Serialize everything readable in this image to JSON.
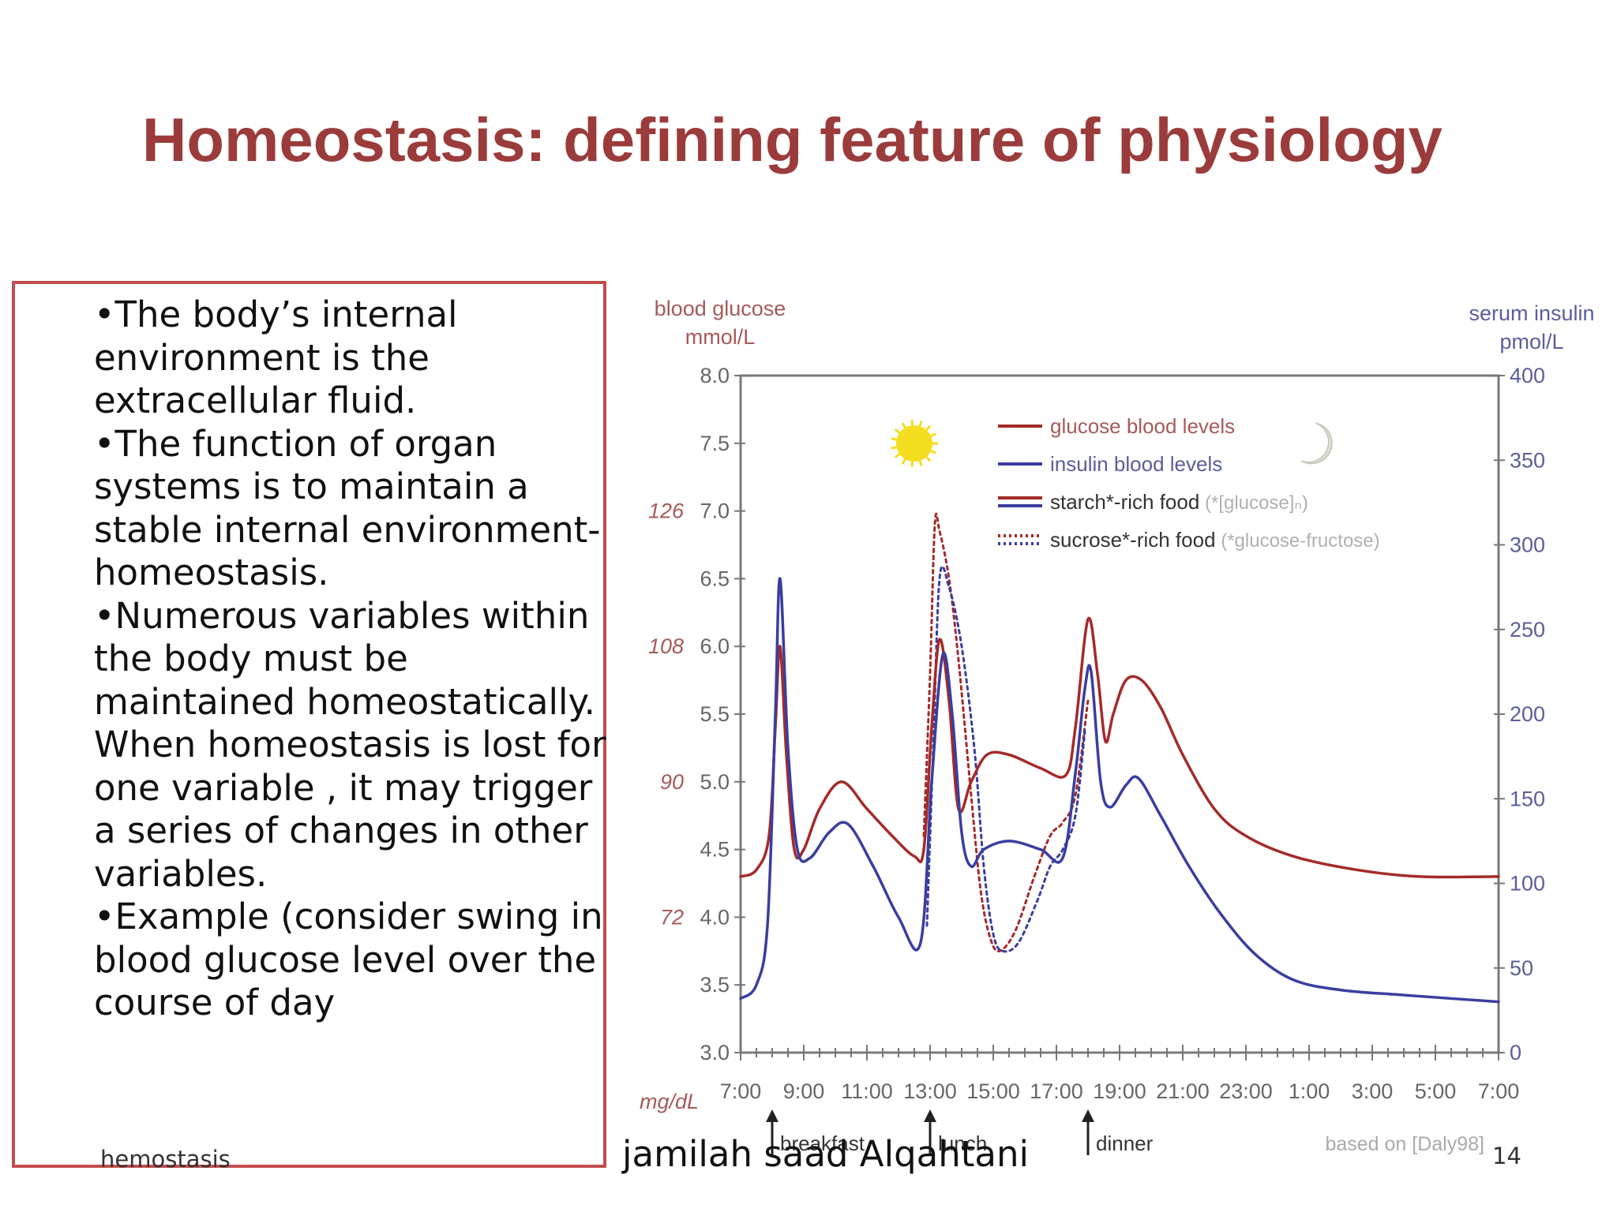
{
  "slide": {
    "title": "Homeostasis: defining feature of physiology",
    "bullets": [
      "The body’s internal environment is the extracellular fluid.",
      "The function of organ systems is to maintain a stable internal environment-homeostasis.",
      "Numerous variables within the body must be maintained homeostatically.  When homeostasis is lost for one variable , it may trigger a series of changes in other variables.",
      "Example (consider swing in blood glucose level over the course of day"
    ],
    "footer_left": "hemostasis",
    "footer_center": "jamilah saad Alqahtani",
    "page_number": "14"
  },
  "chart_data": {
    "type": "line",
    "left_axis": {
      "title_line1": "blood glucose",
      "title_line2": "mmol/L",
      "range": [
        3.0,
        8.0
      ],
      "ticks": [
        "3.0",
        "3.5",
        "4.0",
        "4.5",
        "5.0",
        "5.5",
        "6.0",
        "6.5",
        "7.0",
        "7.5",
        "8.0"
      ],
      "mgdl_label": "mg/dL",
      "mgdl_ticks": [
        {
          "label": "72",
          "at": 4.0
        },
        {
          "label": "90",
          "at": 5.0
        },
        {
          "label": "108",
          "at": 6.0
        },
        {
          "label": "126",
          "at": 7.0
        }
      ]
    },
    "right_axis": {
      "title_line1": "serum insulin",
      "title_line2": "pmol/L",
      "range": [
        0,
        400
      ],
      "ticks": [
        "0",
        "50",
        "100",
        "150",
        "200",
        "250",
        "300",
        "350",
        "400"
      ]
    },
    "x_axis": {
      "range_hours": [
        0,
        24
      ],
      "tick_labels": [
        "7:00",
        "9:00",
        "11:00",
        "13:00",
        "15:00",
        "17:00",
        "19:00",
        "21:00",
        "23:00",
        "1:00",
        "3:00",
        "5:00",
        "7:00"
      ]
    },
    "meals": [
      {
        "label": "breakfast",
        "hour": 1.0
      },
      {
        "label": "lunch",
        "hour": 6.0
      },
      {
        "label": "dinner",
        "hour": 11.0
      }
    ],
    "legend": [
      {
        "label": "glucose blood levels",
        "note": ""
      },
      {
        "label": "insulin blood levels",
        "note": ""
      },
      {
        "label": "starch*-rich food",
        "note": "(*[glucose]ₙ)"
      },
      {
        "label": "sucrose*-rich food",
        "note": "(*glucose-fructose)"
      }
    ],
    "source_note": "based on [Daly98]",
    "colors": {
      "glucose": "#a52a2a",
      "insulin": "#3a3ea0",
      "axis": "#555555",
      "tick_text": "#666666",
      "sun": "#f5dd20",
      "moon": "#d8ddd0"
    },
    "series": [
      {
        "name": "glucose blood levels",
        "axis": "left",
        "points": [
          [
            0,
            4.3
          ],
          [
            0.5,
            4.35
          ],
          [
            0.9,
            4.6
          ],
          [
            1.1,
            5.4
          ],
          [
            1.25,
            6.0
          ],
          [
            1.45,
            5.2
          ],
          [
            1.7,
            4.5
          ],
          [
            2.0,
            4.5
          ],
          [
            2.5,
            4.8
          ],
          [
            3.2,
            5.0
          ],
          [
            4.0,
            4.8
          ],
          [
            4.8,
            4.6
          ],
          [
            5.5,
            4.45
          ],
          [
            5.8,
            4.5
          ],
          [
            6.05,
            5.4
          ],
          [
            6.3,
            6.05
          ],
          [
            6.6,
            5.6
          ],
          [
            6.9,
            4.8
          ],
          [
            7.3,
            5.0
          ],
          [
            7.8,
            5.2
          ],
          [
            8.5,
            5.2
          ],
          [
            9.5,
            5.1
          ],
          [
            10.3,
            5.05
          ],
          [
            10.6,
            5.4
          ],
          [
            11.0,
            6.2
          ],
          [
            11.3,
            5.8
          ],
          [
            11.55,
            5.3
          ],
          [
            11.8,
            5.5
          ],
          [
            12.2,
            5.75
          ],
          [
            12.7,
            5.75
          ],
          [
            13.3,
            5.55
          ],
          [
            14.0,
            5.2
          ],
          [
            15.0,
            4.8
          ],
          [
            16.0,
            4.6
          ],
          [
            17.5,
            4.45
          ],
          [
            19.5,
            4.35
          ],
          [
            21.5,
            4.3
          ],
          [
            24.0,
            4.3
          ]
        ]
      },
      {
        "name": "insulin blood levels",
        "axis": "right",
        "points": [
          [
            0,
            32
          ],
          [
            0.5,
            40
          ],
          [
            0.85,
            75
          ],
          [
            1.1,
            200
          ],
          [
            1.25,
            280
          ],
          [
            1.5,
            180
          ],
          [
            1.8,
            120
          ],
          [
            2.2,
            115
          ],
          [
            2.8,
            130
          ],
          [
            3.4,
            135
          ],
          [
            4.2,
            110
          ],
          [
            5.0,
            80
          ],
          [
            5.7,
            65
          ],
          [
            6.05,
            160
          ],
          [
            6.4,
            235
          ],
          [
            6.7,
            200
          ],
          [
            7.0,
            130
          ],
          [
            7.3,
            110
          ],
          [
            7.7,
            120
          ],
          [
            8.5,
            125
          ],
          [
            9.5,
            120
          ],
          [
            10.2,
            115
          ],
          [
            10.6,
            165
          ],
          [
            10.9,
            215
          ],
          [
            11.1,
            225
          ],
          [
            11.4,
            160
          ],
          [
            11.7,
            145
          ],
          [
            12.2,
            158
          ],
          [
            12.6,
            162
          ],
          [
            13.3,
            140
          ],
          [
            14.2,
            110
          ],
          [
            15.2,
            82
          ],
          [
            16.3,
            58
          ],
          [
            17.5,
            43
          ],
          [
            19.0,
            37
          ],
          [
            21.0,
            34
          ],
          [
            24.0,
            30
          ]
        ]
      },
      {
        "name": "sucrose*-rich food glucose",
        "axis": "left",
        "points": [
          [
            5.8,
            4.6
          ],
          [
            6.0,
            5.8
          ],
          [
            6.15,
            6.9
          ],
          [
            6.3,
            6.85
          ],
          [
            6.6,
            6.5
          ],
          [
            6.9,
            5.9
          ],
          [
            7.3,
            4.9
          ],
          [
            7.6,
            4.2
          ],
          [
            7.9,
            3.85
          ],
          [
            8.2,
            3.75
          ],
          [
            8.7,
            3.9
          ],
          [
            9.3,
            4.3
          ],
          [
            9.8,
            4.6
          ],
          [
            10.2,
            4.7
          ],
          [
            10.6,
            4.9
          ],
          [
            11.0,
            5.6
          ]
        ]
      },
      {
        "name": "sucrose*-rich food insulin",
        "axis": "right",
        "points": [
          [
            5.9,
            75
          ],
          [
            6.1,
            180
          ],
          [
            6.3,
            280
          ],
          [
            6.6,
            275
          ],
          [
            7.0,
            240
          ],
          [
            7.4,
            180
          ],
          [
            7.7,
            110
          ],
          [
            8.0,
            70
          ],
          [
            8.3,
            60
          ],
          [
            8.8,
            65
          ],
          [
            9.4,
            90
          ],
          [
            9.8,
            110
          ],
          [
            10.2,
            120
          ],
          [
            10.6,
            140
          ],
          [
            10.9,
            190
          ]
        ]
      }
    ]
  }
}
